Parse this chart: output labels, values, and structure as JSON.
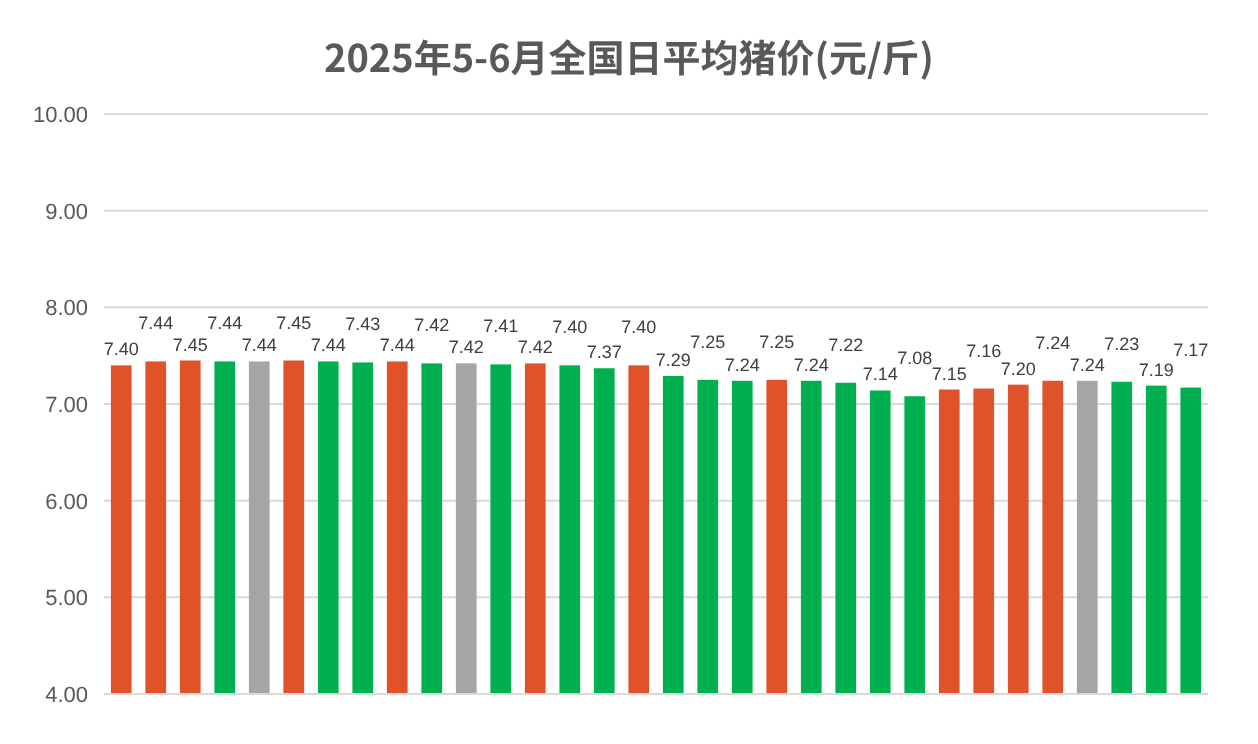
{
  "chart_data": {
    "type": "bar",
    "title": "2025年5-6月全国日平均猪价(元/斤)",
    "categories": [
      null,
      null,
      null,
      null,
      null,
      null,
      null,
      null,
      null,
      null,
      null,
      null,
      null,
      null,
      null,
      null,
      null,
      null,
      null,
      null,
      null,
      null,
      null,
      null,
      null,
      null,
      null,
      null,
      null,
      null,
      null,
      null
    ],
    "values": [
      7.4,
      7.44,
      7.45,
      7.44,
      7.44,
      7.45,
      7.44,
      7.43,
      7.44,
      7.42,
      7.42,
      7.41,
      7.42,
      7.4,
      7.37,
      7.4,
      7.29,
      7.25,
      7.24,
      7.25,
      7.24,
      7.22,
      7.14,
      7.08,
      7.15,
      7.16,
      7.2,
      7.24,
      7.24,
      7.23,
      7.19,
      7.17
    ],
    "value_labels": [
      "7.40",
      "7.44",
      "7.45",
      "7.44",
      "7.44",
      "7.45",
      "7.44",
      "7.43",
      "7.44",
      "7.42",
      "7.42",
      "7.41",
      "7.42",
      "7.40",
      "7.37",
      "7.40",
      "7.29",
      "7.25",
      "7.24",
      "7.25",
      "7.24",
      "7.22",
      "7.14",
      "7.08",
      "7.15",
      "7.16",
      "7.20",
      "7.24",
      "7.24",
      "7.23",
      "7.19",
      "7.17"
    ],
    "colors": [
      "#e0522a",
      "#e0522a",
      "#e0522a",
      "#00b050",
      "#a5a5a5",
      "#e0522a",
      "#00b050",
      "#00b050",
      "#e0522a",
      "#00b050",
      "#a5a5a5",
      "#00b050",
      "#e0522a",
      "#00b050",
      "#00b050",
      "#e0522a",
      "#00b050",
      "#00b050",
      "#00b050",
      "#e0522a",
      "#00b050",
      "#00b050",
      "#00b050",
      "#00b050",
      "#e0522a",
      "#e0522a",
      "#e0522a",
      "#e0522a",
      "#a5a5a5",
      "#00b050",
      "#00b050",
      "#00b050"
    ],
    "ylim": [
      4,
      10
    ],
    "yticks": [
      {
        "value": 4,
        "label": "4.00"
      },
      {
        "value": 5,
        "label": "5.00"
      },
      {
        "value": 6,
        "label": "6.00"
      },
      {
        "value": 7,
        "label": "7.00"
      },
      {
        "value": 8,
        "label": "8.00"
      },
      {
        "value": 9,
        "label": "9.00"
      },
      {
        "value": 10,
        "label": "10.00"
      }
    ],
    "grid": "y"
  }
}
